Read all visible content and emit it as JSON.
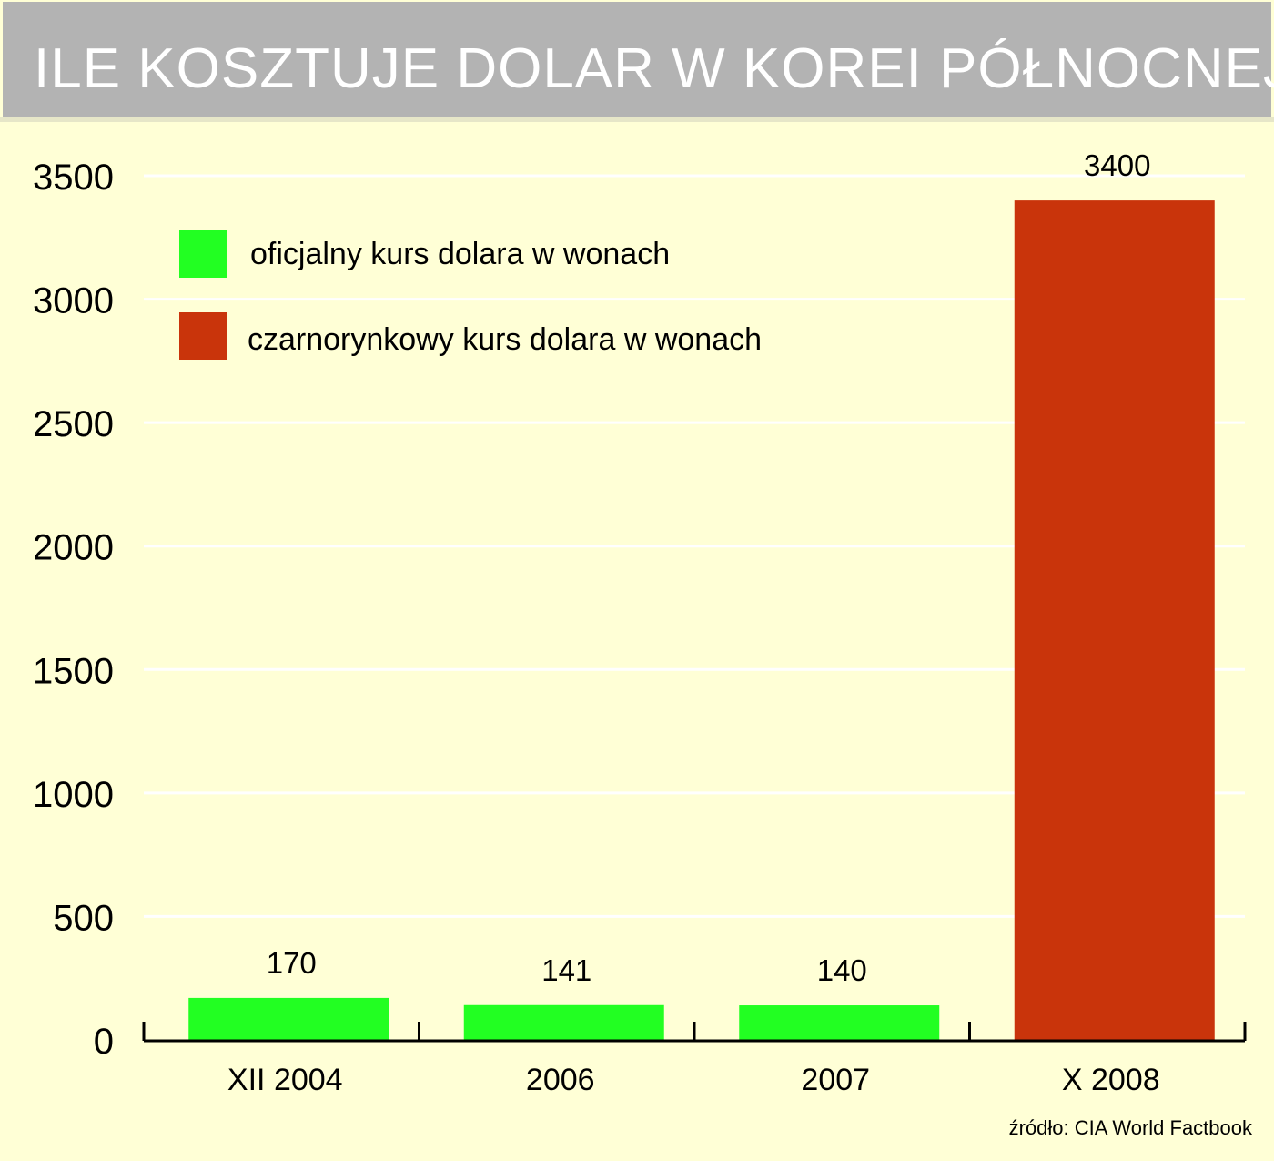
{
  "title": "ILE KOSZTUJE DOLAR W KOREI PÓŁNOCNEJ",
  "source": "źródło: CIA World Factbook",
  "colors": {
    "background": "#ffffd6",
    "title_bar": "#b3b3b3",
    "official": "#22ff22",
    "black_market": "#c9340b",
    "gridline": "#ffffff"
  },
  "chart_data": {
    "type": "bar",
    "title": "ILE KOSZTUJE DOLAR W KOREI PÓŁNOCNEJ",
    "categories": [
      "XII 2004",
      "2006",
      "2007",
      "X 2008"
    ],
    "series": [
      {
        "name": "oficjalny kurs dolara w wonach",
        "values": [
          170,
          141,
          140,
          null
        ],
        "color": "#22ff22"
      },
      {
        "name": "czarnorynkowy kurs dolara w wonach",
        "values": [
          null,
          null,
          null,
          3400
        ],
        "color": "#c9340b"
      }
    ],
    "data_labels": [
      "170",
      "141",
      "140",
      "3400"
    ],
    "yticks": [
      0,
      500,
      1000,
      1500,
      2000,
      2500,
      3000,
      3500
    ],
    "ylim": [
      0,
      3500
    ],
    "xlabel": "",
    "ylabel": "",
    "grid": true,
    "legend_position": "top-left"
  }
}
